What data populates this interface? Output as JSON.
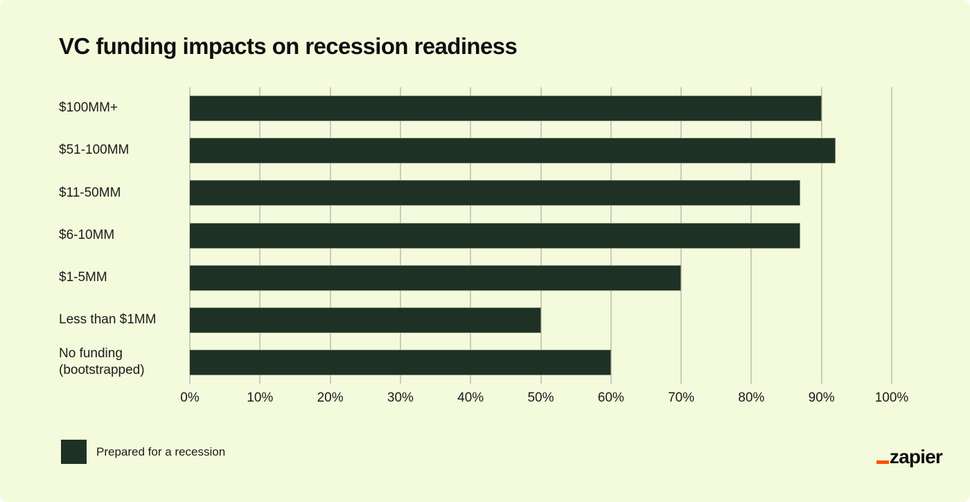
{
  "title": "VC funding impacts on recession readiness",
  "chart_data": {
    "type": "bar",
    "orientation": "horizontal",
    "title": "VC funding impacts on recession readiness",
    "categories": [
      "$100MM+",
      "$51-100MM",
      "$11-50MM",
      "$6-10MM",
      "$1-5MM",
      "Less than $1MM",
      "No funding (bootstrapped)"
    ],
    "series": [
      {
        "name": "Prepared for a recession",
        "values": [
          90,
          92,
          87,
          87,
          70,
          50,
          60
        ]
      }
    ],
    "xlabel": "",
    "ylabel": "",
    "xlim": [
      0,
      100
    ],
    "x_tick_labels": [
      "0%",
      "10%",
      "20%",
      "30%",
      "40%",
      "50%",
      "60%",
      "70%",
      "80%",
      "90%",
      "100%"
    ],
    "x_tick_values": [
      0,
      10,
      20,
      30,
      40,
      50,
      60,
      70,
      80,
      90,
      100
    ],
    "grid": true,
    "legend_position": "bottom-left"
  },
  "legend": {
    "label": "Prepared for a recession"
  },
  "branding": {
    "logo_text": "zapier",
    "underscore_glyph": "_"
  },
  "colors": {
    "card_background": "#f3fbdc",
    "bar": "#1f3124",
    "gridline": "#c9cbb9",
    "logo_orange": "#ff4f00",
    "text": "#171717"
  }
}
